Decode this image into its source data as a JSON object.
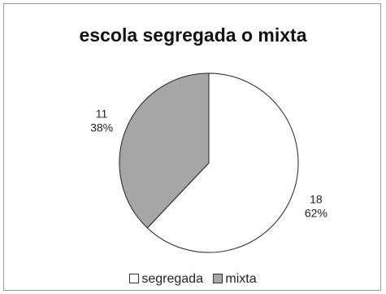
{
  "chart_data": {
    "type": "pie",
    "title": "escola segregada o mixta",
    "categories": [
      "segregada",
      "mixta"
    ],
    "values": [
      18,
      11
    ],
    "percent_labels": [
      "62%",
      "38%"
    ],
    "slice_colors": [
      "#ffffff",
      "#a6a6a6"
    ],
    "legend_position": "bottom",
    "start_angle": "12 o'clock, clockwise"
  }
}
